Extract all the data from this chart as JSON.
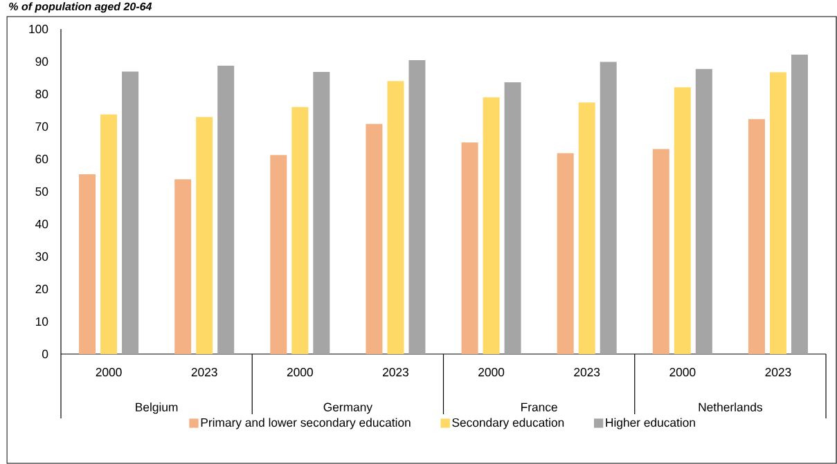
{
  "chart_data": {
    "type": "bar",
    "title": "% of population aged 20-64",
    "categories": [
      "2000",
      "2023",
      "2000",
      "2023",
      "2000",
      "2023",
      "2000",
      "2023"
    ],
    "annotations": [
      "Belgium",
      "Germany",
      "France",
      "Netherlands"
    ],
    "series": [
      {
        "name": "Primary and lower secondary education",
        "color": "#f4b183",
        "values": [
          55.3,
          53.8,
          61.2,
          70.8,
          65.1,
          61.8,
          63.1,
          72.3
        ]
      },
      {
        "name": "Secondary education",
        "color": "#ffd966",
        "values": [
          73.7,
          72.9,
          76.0,
          84.0,
          79.0,
          77.4,
          82.1,
          86.7
        ]
      },
      {
        "name": "Higher education",
        "color": "#a5a5a5",
        "values": [
          86.9,
          88.7,
          86.8,
          90.4,
          83.6,
          89.9,
          87.7,
          92.1
        ]
      }
    ],
    "ylim": [
      0,
      100
    ],
    "yticks": [
      0,
      10,
      20,
      30,
      40,
      50,
      60,
      70,
      80,
      90,
      100
    ],
    "legend": "bottom"
  }
}
